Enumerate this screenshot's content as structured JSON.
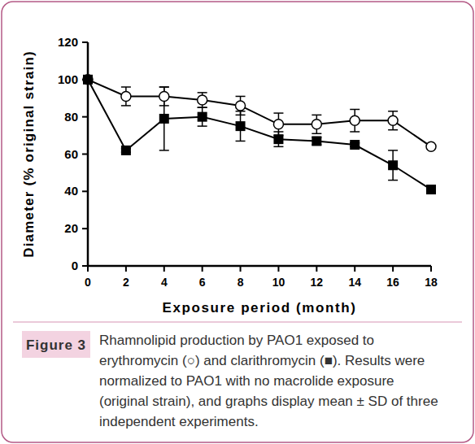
{
  "chart_data": {
    "type": "line",
    "x_label": "Exposure period (month)",
    "y_label": "Diameter (% original strain)",
    "x": [
      0,
      2,
      4,
      6,
      8,
      10,
      12,
      14,
      16,
      18
    ],
    "xlim": [
      0,
      18
    ],
    "xticks": [
      0,
      2,
      4,
      6,
      8,
      10,
      12,
      14,
      16,
      18
    ],
    "ylim": [
      0,
      120
    ],
    "yticks": [
      0,
      20,
      40,
      60,
      80,
      100,
      120
    ],
    "grid": false,
    "series": [
      {
        "name": "erythromycin",
        "color": "#000000",
        "marker": "open_circle",
        "line_style": "solid",
        "values": [
          100,
          91,
          91,
          89,
          86,
          76,
          76,
          78,
          78,
          64
        ],
        "errors": [
          0,
          5,
          5,
          4,
          5,
          6,
          5,
          6,
          5,
          1
        ]
      },
      {
        "name": "clarithromycin",
        "color": "#000000",
        "marker": "square",
        "line_style": "solid",
        "values": [
          100,
          62,
          79,
          80,
          75,
          68,
          67,
          65,
          54,
          41
        ],
        "errors": [
          0,
          1,
          17,
          5,
          8,
          4,
          2,
          1,
          8,
          1
        ]
      }
    ],
    "caption": {
      "label": "Figure 3",
      "lines": [
        "Rhamnolipid production by PAO1 exposed to",
        "erythromycin (○) and clarithromycin (■). Results were",
        "normalized to PAO1 with no macrolide exposure",
        "(original strain), and graphs display mean ±  SD of three",
        "independent experiments."
      ]
    }
  }
}
